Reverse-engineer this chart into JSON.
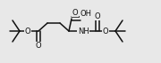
{
  "bg_color": "#e8e8e8",
  "bond_color": "#111111",
  "figsize": [
    1.8,
    0.71
  ],
  "dpi": 100,
  "xlim": [
    0,
    180
  ],
  "ylim": [
    0,
    71
  ],
  "fs": 6.0
}
